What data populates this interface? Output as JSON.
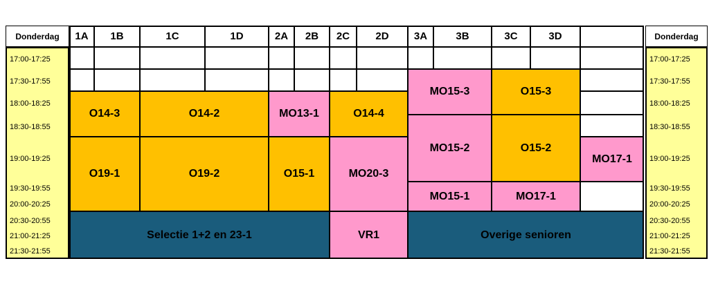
{
  "day_label": "Donderdag",
  "columns": [
    "1A",
    "1B",
    "1C",
    "1D",
    "2A",
    "2B",
    "2C",
    "2D",
    "3A",
    "3B",
    "3C",
    "3D",
    ""
  ],
  "time_slots": [
    "17:00-17:25",
    "17:30-17:55",
    "18:00-18:25",
    "18:30-18:55",
    "19:00-19:25",
    "19:30-19:55",
    "20:00-20:25",
    "20:30-20:55",
    "21:00-21:25",
    "21:30-21:55"
  ],
  "colors": {
    "orange": "#ffc000",
    "pink": "#ff99cc",
    "teal": "#1a5c7c",
    "time_bg": "#ffff99",
    "empty": "#ffffff"
  },
  "blocks": [
    {
      "label": "O14-3",
      "color": "orange"
    },
    {
      "label": "O14-2",
      "color": "orange"
    },
    {
      "label": "MO13-1",
      "color": "pink"
    },
    {
      "label": "O14-4",
      "color": "orange"
    },
    {
      "label": "MO15-3",
      "color": "pink"
    },
    {
      "label": "O15-3",
      "color": "orange"
    },
    {
      "label": "MO15-2",
      "color": "pink"
    },
    {
      "label": "O15-2",
      "color": "orange"
    },
    {
      "label": "MO17-1",
      "color": "pink"
    },
    {
      "label": "O19-1",
      "color": "orange"
    },
    {
      "label": "O19-2",
      "color": "orange"
    },
    {
      "label": "O15-1",
      "color": "orange"
    },
    {
      "label": "MO20-3",
      "color": "pink"
    },
    {
      "label": "MO15-1",
      "color": "pink"
    },
    {
      "label": "MO17-1",
      "color": "pink"
    },
    {
      "label": "Selectie 1+2 en 23-1",
      "color": "teal"
    },
    {
      "label": "VR1",
      "color": "pink"
    },
    {
      "label": "Overige senioren",
      "color": "teal"
    }
  ]
}
